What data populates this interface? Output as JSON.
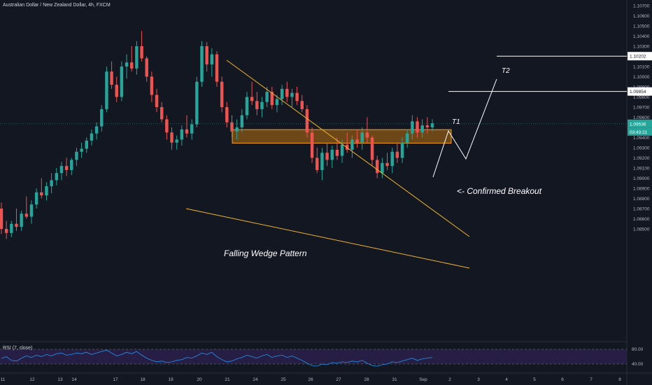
{
  "title": "Australian Dollar / New Zealand Dollar, 4h, FXCM",
  "rsi_label": "RSI (7, close)",
  "colors": {
    "background": "#131722",
    "up": "#26a69a",
    "down": "#ef5350",
    "wedge": "#f0b429",
    "zone_fill": "#b8700f",
    "zone_border": "#f0a020",
    "projection": "#ffffff",
    "rsi_line": "#2196f3",
    "rsi_band": "#2a1f4a",
    "axis_text": "#b2b5be",
    "last_price_bg": "#26a69a"
  },
  "price_axis": {
    "labels": [
      "1.10700",
      "1.10600",
      "1.10500",
      "1.10400",
      "1.10300",
      "1.10200",
      "1.10100",
      "1.10000",
      "1.09900",
      "1.09800",
      "1.09700",
      "1.09600",
      "1.09500",
      "1.09400",
      "1.09300",
      "1.09200",
      "1.09100",
      "1.09000",
      "1.08900",
      "1.08800",
      "1.08700",
      "1.08600",
      "1.08500"
    ],
    "highlight_t2": "1.10202",
    "highlight_t1": "1.09854",
    "current_price": "1.09536",
    "countdown": "03:43:21"
  },
  "rsi_axis": {
    "upper": "80.00",
    "lower": "40.00"
  },
  "time_axis": {
    "labels": [
      "11",
      "12",
      "13",
      "14",
      "17",
      "18",
      "19",
      "20",
      "21",
      "24",
      "25",
      "26",
      "27",
      "28",
      "31",
      "Sep",
      "2",
      "3",
      "4",
      "5",
      "6",
      "7",
      "8",
      "9",
      "10"
    ]
  },
  "annotations": {
    "wedge": "Falling Wedge Pattern",
    "breakout": "<- Confirmed Breakout",
    "t1": "T1",
    "t2": "T2"
  },
  "chart_data": {
    "type": "candlestick",
    "symbol": "AUDNZD",
    "timeframe": "4h",
    "ylim": [
      1.0845,
      1.1075
    ],
    "ohlc": [
      [
        1.087,
        1.0876,
        1.0845,
        1.085
      ],
      [
        1.085,
        1.0858,
        1.084,
        1.0846
      ],
      [
        1.0846,
        1.0858,
        1.0842,
        1.0855
      ],
      [
        1.0855,
        1.087,
        1.0848,
        1.0852
      ],
      [
        1.0852,
        1.0868,
        1.0848,
        1.0865
      ],
      [
        1.0865,
        1.0882,
        1.086,
        1.0862
      ],
      [
        1.0862,
        1.0878,
        1.0855,
        1.0874
      ],
      [
        1.0874,
        1.089,
        1.087,
        1.0886
      ],
      [
        1.0886,
        1.09,
        1.088,
        1.0883
      ],
      [
        1.0883,
        1.0896,
        1.0878,
        1.0892
      ],
      [
        1.0892,
        1.0905,
        1.0885,
        1.0898
      ],
      [
        1.0898,
        1.091,
        1.0893,
        1.0905
      ],
      [
        1.0905,
        1.0916,
        1.0898,
        1.0912
      ],
      [
        1.0912,
        1.092,
        1.0902,
        1.0908
      ],
      [
        1.0908,
        1.092,
        1.0903,
        1.0918
      ],
      [
        1.0918,
        1.093,
        1.0912,
        1.0926
      ],
      [
        1.0926,
        1.0935,
        1.092,
        1.0929
      ],
      [
        1.0929,
        1.094,
        1.0925,
        1.0937
      ],
      [
        1.0937,
        1.0948,
        1.0932,
        1.0944
      ],
      [
        1.0944,
        1.0955,
        1.0938,
        1.0951
      ],
      [
        1.0951,
        1.0972,
        1.0946,
        1.0968
      ],
      [
        1.0968,
        1.101,
        1.0965,
        1.1005
      ],
      [
        1.1005,
        1.1015,
        1.0988,
        1.0992
      ],
      [
        1.0992,
        1.1,
        1.0975,
        1.098
      ],
      [
        1.098,
        1.1015,
        1.0976,
        1.101
      ],
      [
        1.101,
        1.1022,
        1.0998,
        1.1014
      ],
      [
        1.1014,
        1.103,
        1.1005,
        1.1008
      ],
      [
        1.1008,
        1.1035,
        1.1002,
        1.103
      ],
      [
        1.103,
        1.1045,
        1.1015,
        1.1018
      ],
      [
        1.1018,
        1.102,
        1.0995,
        1.1
      ],
      [
        1.1,
        1.1005,
        1.0975,
        1.0982
      ],
      [
        1.0982,
        1.0988,
        1.0965,
        1.097
      ],
      [
        1.097,
        1.0975,
        1.0955,
        1.0958
      ],
      [
        1.0958,
        1.0962,
        1.0938,
        1.0945
      ],
      [
        1.0945,
        1.095,
        1.0928,
        1.0935
      ],
      [
        1.0935,
        1.0942,
        1.0928,
        1.0938
      ],
      [
        1.0938,
        1.0952,
        1.0932,
        1.0948
      ],
      [
        1.0948,
        1.0962,
        1.094,
        1.0944
      ],
      [
        1.0944,
        1.0958,
        1.0938,
        1.0953
      ],
      [
        1.0953,
        1.1,
        1.095,
        1.0995
      ],
      [
        1.0995,
        1.1035,
        1.099,
        1.103
      ],
      [
        1.103,
        1.1034,
        1.1005,
        1.1012
      ],
      [
        1.1012,
        1.1028,
        1.1,
        1.1022
      ],
      [
        1.1022,
        1.1025,
        1.099,
        1.0995
      ],
      [
        1.0995,
        1.1,
        1.0965,
        1.097
      ],
      [
        1.097,
        1.0975,
        1.095,
        1.0955
      ],
      [
        1.0955,
        1.0962,
        1.094,
        1.0946
      ],
      [
        1.0946,
        1.0958,
        1.0938,
        1.095
      ],
      [
        1.095,
        1.0968,
        1.0945,
        1.0962
      ],
      [
        1.0962,
        1.0985,
        1.0958,
        1.098
      ],
      [
        1.098,
        1.0995,
        1.0972,
        1.0976
      ],
      [
        1.0976,
        1.0985,
        1.0962,
        1.0968
      ],
      [
        1.0968,
        1.098,
        1.096,
        1.0975
      ],
      [
        1.0975,
        1.099,
        1.097,
        1.0985
      ],
      [
        1.0985,
        1.099,
        1.0968,
        1.0972
      ],
      [
        1.0972,
        1.0982,
        1.0965,
        1.0978
      ],
      [
        1.0978,
        1.0992,
        1.0972,
        1.0988
      ],
      [
        1.0988,
        1.0995,
        1.0975,
        1.098
      ],
      [
        1.098,
        1.0988,
        1.097,
        1.0984
      ],
      [
        1.0984,
        1.099,
        1.0972,
        1.0976
      ],
      [
        1.0976,
        1.0982,
        1.0965,
        1.0968
      ],
      [
        1.0968,
        1.0972,
        1.094,
        1.0945
      ],
      [
        1.0945,
        1.095,
        1.0915,
        1.092
      ],
      [
        1.092,
        1.093,
        1.0905,
        1.0908
      ],
      [
        1.0908,
        1.093,
        1.0898,
        1.0925
      ],
      [
        1.0925,
        1.0935,
        1.0912,
        1.0918
      ],
      [
        1.0918,
        1.0932,
        1.091,
        1.0928
      ],
      [
        1.0928,
        1.094,
        1.0918,
        1.0922
      ],
      [
        1.0922,
        1.0938,
        1.0915,
        1.0933
      ],
      [
        1.0933,
        1.0945,
        1.0925,
        1.0928
      ],
      [
        1.0928,
        1.0942,
        1.092,
        1.0938
      ],
      [
        1.0938,
        1.0948,
        1.093,
        1.0935
      ],
      [
        1.0935,
        1.095,
        1.0928,
        1.0945
      ],
      [
        1.0945,
        1.096,
        1.0935,
        1.094
      ],
      [
        1.094,
        1.0942,
        1.0912,
        1.0918
      ],
      [
        1.0918,
        1.0922,
        1.09,
        1.0905
      ],
      [
        1.0905,
        1.092,
        1.09,
        1.0915
      ],
      [
        1.0915,
        1.0925,
        1.0908,
        1.0912
      ],
      [
        1.0912,
        1.093,
        1.0905,
        1.0926
      ],
      [
        1.0926,
        1.0935,
        1.0915,
        1.092
      ],
      [
        1.092,
        1.094,
        1.0915,
        1.0935
      ],
      [
        1.0935,
        1.0948,
        1.093,
        1.0944
      ],
      [
        1.0944,
        1.0962,
        1.0938,
        1.0956
      ],
      [
        1.0956,
        1.096,
        1.094,
        1.0945
      ],
      [
        1.0945,
        1.0958,
        1.094,
        1.0952
      ],
      [
        1.0952,
        1.096,
        1.0944,
        1.095
      ],
      [
        1.095,
        1.0958,
        1.0946,
        1.0954
      ]
    ],
    "zone": {
      "from_price": 1.094,
      "to_price": 1.0948
    },
    "wedge_upper": [
      [
        1.1034,
        "21"
      ],
      [
        1.0915,
        "after Sep"
      ]
    ],
    "wedge_lower": [
      [
        1.093,
        "19"
      ],
      [
        1.0893,
        "after Sep"
      ]
    ],
    "projection": [
      1.0954,
      1.0985,
      1.0972,
      1.102
    ],
    "targets": {
      "T1": 1.09854,
      "T2": 1.10202
    },
    "rsi": [
      55,
      60,
      50,
      48,
      56,
      62,
      58,
      64,
      60,
      66,
      62,
      68,
      70,
      64,
      66,
      70,
      68,
      72,
      66,
      70,
      74,
      78,
      70,
      62,
      66,
      72,
      68,
      74,
      64,
      56,
      50,
      46,
      48,
      44,
      46,
      50,
      52,
      58,
      56,
      62,
      70,
      66,
      72,
      60,
      52,
      46,
      48,
      54,
      58,
      64,
      60,
      56,
      62,
      66,
      58,
      62,
      64,
      58,
      62,
      56,
      50,
      42,
      36,
      34,
      40,
      38,
      44,
      42,
      46,
      44,
      48,
      46,
      50,
      42,
      36,
      34,
      38,
      40,
      46,
      44,
      48,
      52,
      56,
      50,
      54,
      56,
      58
    ]
  }
}
